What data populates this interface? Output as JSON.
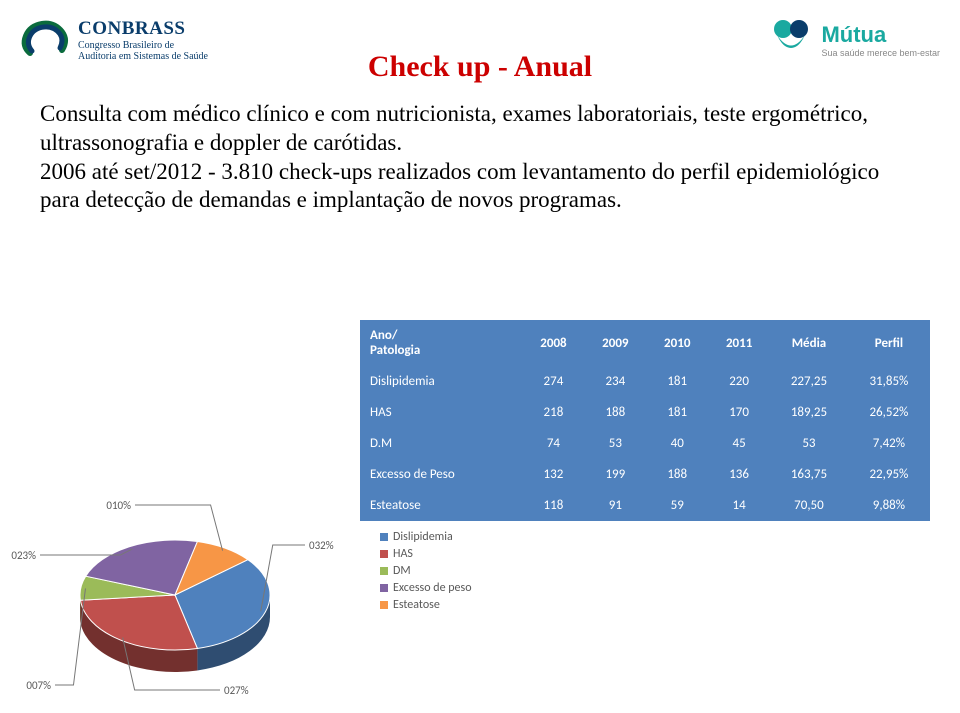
{
  "logos": {
    "left": {
      "title": "CONBRASS",
      "sub1": "Congresso Brasileiro de",
      "sub2": "Auditoria em Sistemas de Saúde"
    },
    "right": {
      "title": "Mútua",
      "sub": "Sua saúde merece bem-estar"
    }
  },
  "title": "Check up - Anual",
  "paragraph": "Consulta com  médico clínico e com nutricionista, exames laboratoriais, teste ergométrico, ultrassonografia e doppler de carótidas.",
  "paragraph2": "2006 até set/2012  - 3.810 check-ups realizados com levantamento do perfil epidemiológico para detecção de demandas e implantação de novos programas.",
  "table": {
    "header_bg": "#4f81bd",
    "row_dark": "#d0d8e8",
    "row_light": "#e9edf4",
    "columns": [
      "Ano/ Patologia",
      "2008",
      "2009",
      "2010",
      "2011",
      "Média",
      "Perfil"
    ],
    "rows": [
      [
        "Dislipidemia",
        "274",
        "234",
        "181",
        "220",
        "227,25",
        "31,85%"
      ],
      [
        "HAS",
        "218",
        "188",
        "181",
        "170",
        "189,25",
        "26,52%"
      ],
      [
        "D.M",
        "74",
        "53",
        "40",
        "45",
        "53",
        "7,42%"
      ],
      [
        "Excesso de Peso",
        "132",
        "199",
        "188",
        "136",
        "163,75",
        "22,95%"
      ],
      [
        "Esteatose",
        "118",
        "91",
        "59",
        "14",
        "70,50",
        "9,88%"
      ]
    ]
  },
  "chart": {
    "type": "pie-3d",
    "background": "#ffffff",
    "slices": [
      {
        "label": "Dislipidemia",
        "pct": "032%",
        "color": "#4f81bd"
      },
      {
        "label": "HAS",
        "pct": "027%",
        "color": "#c0504d"
      },
      {
        "label": "DM",
        "pct": "007%",
        "color": "#9bbb59"
      },
      {
        "label": "Excesso de peso",
        "pct": "023%",
        "color": "#8064a2"
      },
      {
        "label": "Esteatose",
        "pct": "010%",
        "color": "#f79646"
      }
    ],
    "label_font": 11,
    "label_color": "#595959",
    "legend_font": 12
  }
}
